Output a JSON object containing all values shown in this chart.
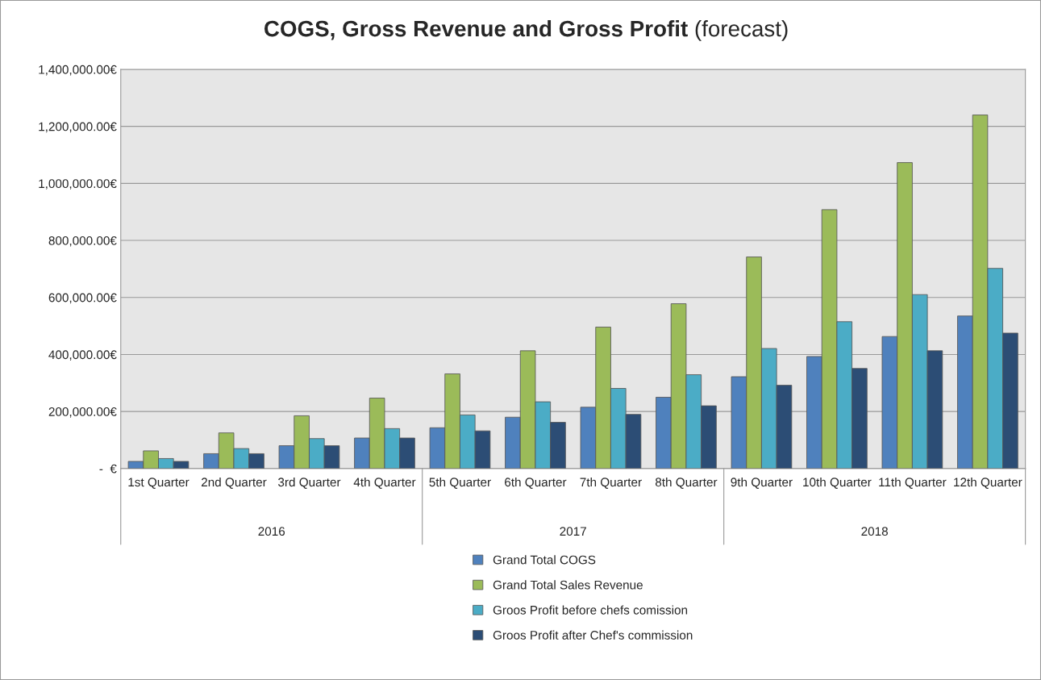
{
  "chart_data": {
    "type": "bar",
    "title": "COGS, Gross Revenue and Gross Profit",
    "subtitle": "(forecast)",
    "categories": [
      "1st Quarter",
      "2nd Quarter",
      "3rd Quarter",
      "4th Quarter",
      "5th Quarter",
      "6th Quarter",
      "7th Quarter",
      "8th Quarter",
      "9th Quarter",
      "10th Quarter",
      "11th Quarter",
      "12th Quarter"
    ],
    "series": [
      {
        "name": "Grand Total COGS",
        "color": "#4f81bd",
        "values": [
          25000,
          52000,
          80000,
          107000,
          143000,
          180000,
          215000,
          250000,
          322000,
          393000,
          463000,
          535000
        ]
      },
      {
        "name": "Grand Total Sales Revenue",
        "color": "#9bbb59",
        "values": [
          62000,
          125000,
          185000,
          247000,
          332000,
          413000,
          496000,
          578000,
          742000,
          908000,
          1073000,
          1240000
        ]
      },
      {
        "name": "Groos Profit before chefs comission",
        "color": "#4bacc6",
        "values": [
          35000,
          70000,
          105000,
          140000,
          188000,
          234000,
          281000,
          329000,
          421000,
          515000,
          610000,
          702000
        ]
      },
      {
        "name": "Groos Profit after Chef's commission",
        "color": "#2c4d75",
        "values": [
          25000,
          52000,
          80000,
          107000,
          132000,
          162000,
          190000,
          220000,
          292000,
          351000,
          413000,
          475000
        ]
      }
    ],
    "annotations": [
      "2016",
      "2017",
      "2018"
    ],
    "ylim": [
      0,
      1400000
    ],
    "yticks": [
      {
        "value": 0,
        "label": "-  €"
      },
      {
        "value": 200000,
        "label": "200,000.00€"
      },
      {
        "value": 400000,
        "label": "400,000.00€"
      },
      {
        "value": 600000,
        "label": "600,000.00€"
      },
      {
        "value": 800000,
        "label": "800,000.00€"
      },
      {
        "value": 1000000,
        "label": "1,000,000.00€"
      },
      {
        "value": 1200000,
        "label": "1,200,000.00€"
      },
      {
        "value": 1400000,
        "label": "1,400,000.00€"
      }
    ],
    "grid": "y",
    "legend": "bottom"
  }
}
